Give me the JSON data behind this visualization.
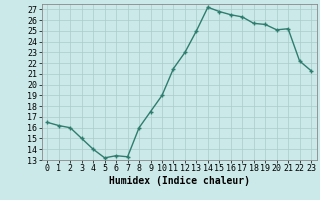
{
  "x": [
    0,
    1,
    2,
    3,
    4,
    5,
    6,
    7,
    8,
    9,
    10,
    11,
    12,
    13,
    14,
    15,
    16,
    17,
    18,
    19,
    20,
    21,
    22,
    23
  ],
  "y": [
    16.5,
    16.2,
    16.0,
    15.0,
    14.0,
    13.2,
    13.4,
    13.3,
    16.0,
    17.5,
    19.0,
    21.5,
    23.0,
    25.0,
    27.2,
    26.8,
    26.5,
    26.3,
    25.7,
    25.6,
    25.1,
    25.2,
    22.2,
    21.3
  ],
  "line_color": "#2e7d6e",
  "marker": "+",
  "marker_size": 3,
  "bg_color": "#cce9e9",
  "grid_color": "#aacccc",
  "xlabel": "Humidex (Indice chaleur)",
  "xlim": [
    -0.5,
    23.5
  ],
  "ylim": [
    13,
    27.5
  ],
  "yticks": [
    13,
    14,
    15,
    16,
    17,
    18,
    19,
    20,
    21,
    22,
    23,
    24,
    25,
    26,
    27
  ],
  "xticks": [
    0,
    1,
    2,
    3,
    4,
    5,
    6,
    7,
    8,
    9,
    10,
    11,
    12,
    13,
    14,
    15,
    16,
    17,
    18,
    19,
    20,
    21,
    22,
    23
  ],
  "tick_font_size": 6,
  "xlabel_font_size": 7,
  "line_width": 1.0
}
